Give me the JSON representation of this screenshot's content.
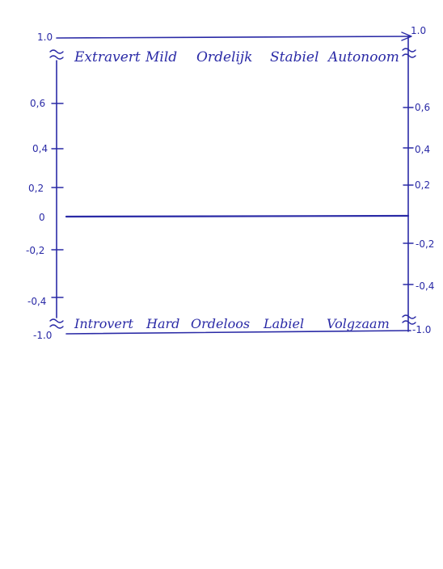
{
  "top_labels": [
    "Extravert",
    "Mild",
    "Ordelijk",
    "Stabiel",
    "Autonoom"
  ],
  "bottom_labels": [
    "Introvert",
    "Hard",
    "Ordeloos",
    "Labiel",
    "Volgzaam"
  ],
  "left_axis": {
    "top": "1.0",
    "bottom": "-1.0",
    "ticks": [
      "0,6",
      "0,4",
      "0,2",
      "0",
      "-0,2",
      "-0,4"
    ]
  },
  "right_axis": {
    "top": "1.0",
    "bottom": "-1.0",
    "ticks": [
      "0,6",
      "0,4",
      "0,2",
      "-0,2",
      "-0,4"
    ]
  },
  "ink_color": "#2a2aa6"
}
